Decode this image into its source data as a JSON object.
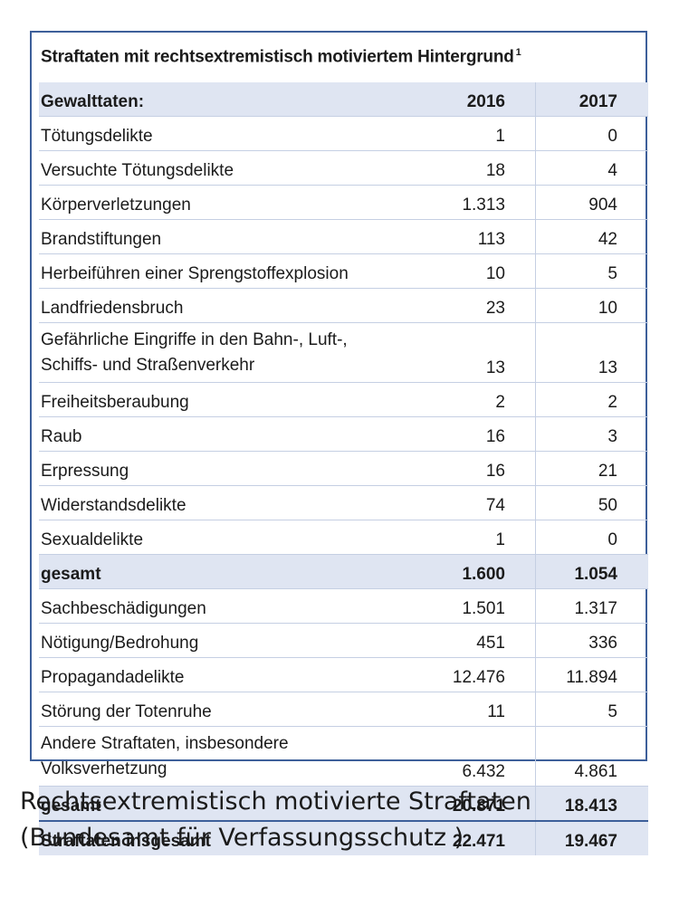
{
  "table": {
    "title": "Straftaten mit rechtsextremistisch motiviertem Hintergrund",
    "footnote_mark": "1",
    "header": {
      "label": "Gewalttaten:",
      "col1": "2016",
      "col2": "2017"
    },
    "violent_rows": [
      {
        "label": "Tötungsdelikte",
        "v2016": "1",
        "v2017": "0"
      },
      {
        "label": "Versuchte Tötungsdelikte",
        "v2016": "18",
        "v2017": "4"
      },
      {
        "label": "Körperverletzungen",
        "v2016": "1.313",
        "v2017": "904"
      },
      {
        "label": "Brandstiftungen",
        "v2016": "113",
        "v2017": "42"
      },
      {
        "label": "Herbeiführen einer Sprengstoffexplosion",
        "v2016": "10",
        "v2017": "5"
      },
      {
        "label": "Landfriedensbruch",
        "v2016": "23",
        "v2017": "10"
      },
      {
        "label": "Gefährliche Eingriffe in den Bahn-, Luft-, Schiffs- und Straßenverkehr",
        "v2016": "13",
        "v2017": "13"
      },
      {
        "label": "Freiheitsberaubung",
        "v2016": "2",
        "v2017": "2"
      },
      {
        "label": "Raub",
        "v2016": "16",
        "v2017": "3"
      },
      {
        "label": "Erpressung",
        "v2016": "16",
        "v2017": "21"
      },
      {
        "label": "Widerstandsdelikte",
        "v2016": "74",
        "v2017": "50"
      },
      {
        "label": "Sexualdelikte",
        "v2016": "1",
        "v2017": "0"
      }
    ],
    "violent_total": {
      "label": "gesamt",
      "v2016": "1.600",
      "v2017": "1.054"
    },
    "other_rows": [
      {
        "label": "Sachbeschädigungen",
        "v2016": "1.501",
        "v2017": "1.317"
      },
      {
        "label": "Nötigung/Bedrohung",
        "v2016": "451",
        "v2017": "336"
      },
      {
        "label": "Propagandadelikte",
        "v2016": "12.476",
        "v2017": "11.894"
      },
      {
        "label": "Störung der Totenruhe",
        "v2016": "11",
        "v2017": "5"
      },
      {
        "label": "Andere Straftaten, insbesondere Volksverhetzung",
        "v2016": "6.432",
        "v2017": "4.861"
      }
    ],
    "other_total": {
      "label": "gesamt",
      "v2016": "20.871",
      "v2017": "18.413"
    },
    "grand_total": {
      "label": "Straftaten insgesamt",
      "v2016": "22.471",
      "v2017": "19.467"
    }
  },
  "caption": {
    "line1": "Rechtsextremistisch motivierte Straftaten",
    "line2": "(Bundesamt für Verfassungsschutz )"
  }
}
